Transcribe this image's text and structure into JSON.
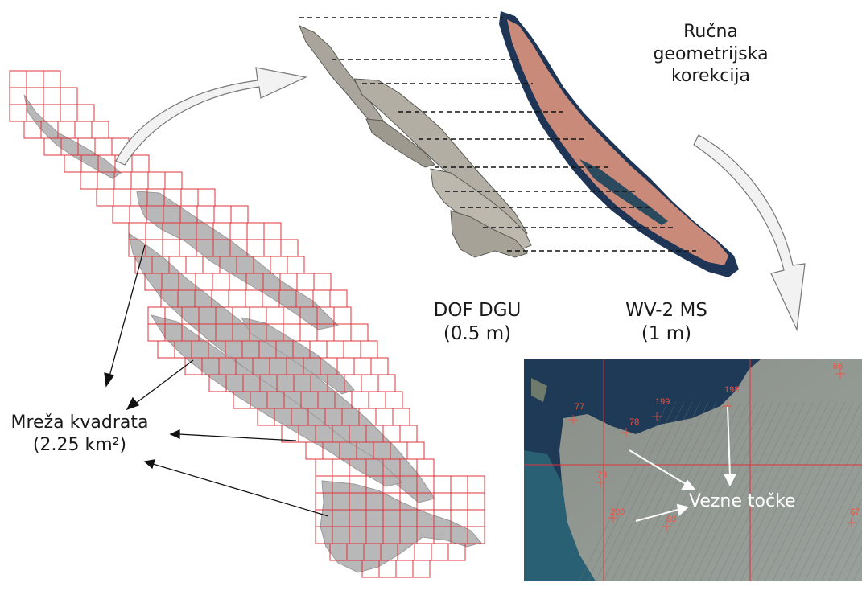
{
  "labels": {
    "ortho_name": "DOF DGU",
    "ortho_res": "(0.5 m)",
    "wv2_name": "WV-2 MS",
    "wv2_res": "(1 m)",
    "correction_l1": "Ručna",
    "correction_l2": "geometrijska",
    "correction_l3": "korekcija",
    "grid_l1": "Mreža kvadrata",
    "grid_l2": "(2.25 km²)",
    "tie_points": "Vezne točke"
  },
  "tie_point_ids": [
    "77",
    "199",
    "78",
    "198",
    "66",
    "79",
    "200",
    "80",
    "67"
  ],
  "colors": {
    "grid_line": "#e0333a",
    "island_fill": "#b9b9b9",
    "wv2_fill": "#c98a7a",
    "wv2_halo": "#1f3555",
    "sea": "#1e3a56",
    "land": "#8a8f86",
    "tie_point_label": "#ff4a3a"
  }
}
